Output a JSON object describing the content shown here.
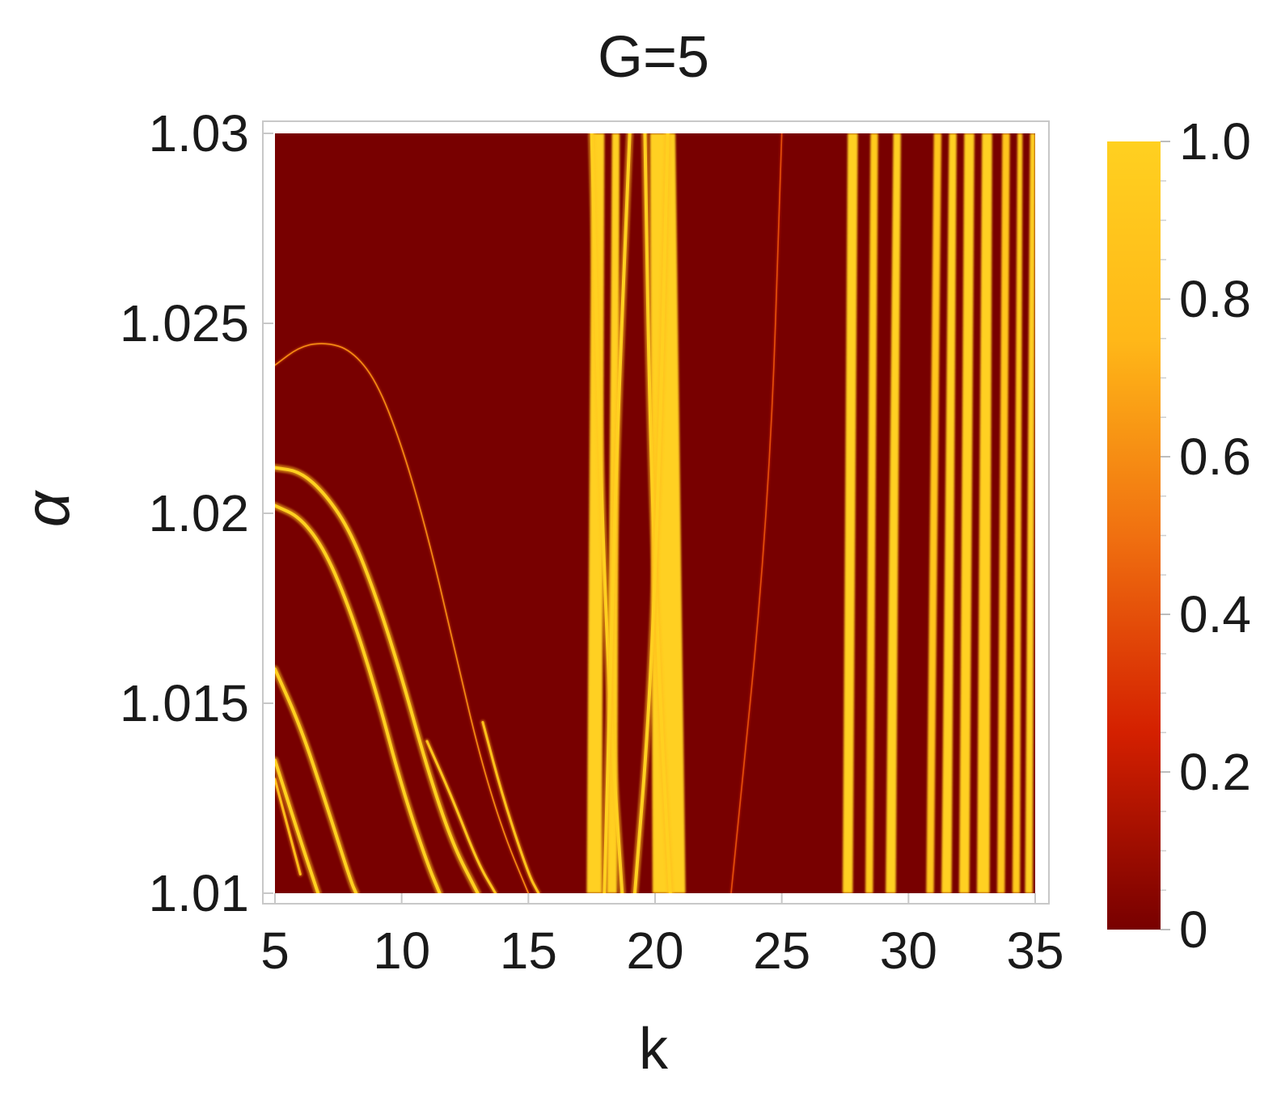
{
  "chart_data": {
    "type": "heatmap",
    "title": "G=5",
    "xlabel": "k",
    "ylabel": "α",
    "xlim": [
      5,
      35
    ],
    "ylim": [
      1.01,
      1.03
    ],
    "xticks": [
      5,
      10,
      15,
      20,
      25,
      30,
      35
    ],
    "xtick_labels": [
      "5",
      "10",
      "15",
      "20",
      "25",
      "30",
      "35"
    ],
    "yticks": [
      1.01,
      1.015,
      1.02,
      1.025,
      1.03
    ],
    "ytick_labels": [
      "1.01",
      "1.015",
      "1.02",
      "1.025",
      "1.03"
    ],
    "colorbar": {
      "min": 0,
      "max": 1,
      "ticks": [
        0,
        0.2,
        0.4,
        0.6,
        0.8,
        1.0
      ],
      "tick_labels": [
        "0",
        "0.2",
        "0.4",
        "0.6",
        "0.8",
        "1.0"
      ],
      "colors": [
        "#780000",
        "#d42000",
        "#f07010",
        "#ffb818",
        "#ffd020"
      ]
    },
    "curves": [
      {
        "points": [
          [
            5,
            1.0239
          ],
          [
            6,
            1.0244
          ],
          [
            7,
            1.0245
          ],
          [
            8,
            1.0243
          ],
          [
            9,
            1.0235
          ],
          [
            10,
            1.0218
          ],
          [
            11,
            1.0195
          ],
          [
            12,
            1.0167
          ],
          [
            13,
            1.0138
          ],
          [
            14,
            1.0116
          ],
          [
            15,
            1.01
          ]
        ],
        "intensity": 0.5
      },
      {
        "points": [
          [
            5,
            1.0212
          ],
          [
            6,
            1.0211
          ],
          [
            7,
            1.0205
          ],
          [
            8,
            1.0195
          ],
          [
            9,
            1.0178
          ],
          [
            10,
            1.0157
          ],
          [
            11,
            1.0133
          ],
          [
            12,
            1.0113
          ],
          [
            13,
            1.01
          ]
        ],
        "intensity": 1.0
      },
      {
        "points": [
          [
            5,
            1.0202
          ],
          [
            6,
            1.0199
          ],
          [
            7,
            1.019
          ],
          [
            8,
            1.0174
          ],
          [
            9,
            1.0153
          ],
          [
            10,
            1.0128
          ],
          [
            11,
            1.0108
          ],
          [
            11.5,
            1.01
          ]
        ],
        "intensity": 1.0
      },
      {
        "points": [
          [
            5,
            1.0159
          ],
          [
            6,
            1.0144
          ],
          [
            7,
            1.0124
          ],
          [
            8,
            1.0103
          ],
          [
            8.2,
            1.01
          ]
        ],
        "intensity": 1.0
      },
      {
        "points": [
          [
            5,
            1.0135
          ],
          [
            6,
            1.0114
          ],
          [
            6.7,
            1.01
          ]
        ],
        "intensity": 0.9
      },
      {
        "points": [
          [
            5,
            1.013
          ],
          [
            5.6,
            1.0115
          ],
          [
            6,
            1.0105
          ]
        ],
        "intensity": 0.7
      },
      {
        "points": [
          [
            11,
            1.014
          ],
          [
            12,
            1.0125
          ],
          [
            13,
            1.0108
          ],
          [
            13.7,
            1.01
          ]
        ],
        "intensity": 0.8
      },
      {
        "points": [
          [
            13.2,
            1.0145
          ],
          [
            14,
            1.0125
          ],
          [
            15,
            1.0105
          ],
          [
            15.4,
            1.01
          ]
        ],
        "intensity": 0.75
      },
      {
        "points": [
          [
            17.5,
            1.03
          ],
          [
            17.8,
            1.022
          ],
          [
            18.2,
            1.015
          ],
          [
            18.7,
            1.01
          ]
        ],
        "intensity": 1.0
      },
      {
        "points": [
          [
            19,
            1.03
          ],
          [
            18.5,
            1.022
          ],
          [
            18.2,
            1.015
          ],
          [
            18,
            1.01
          ]
        ],
        "intensity": 0.9
      },
      {
        "points": [
          [
            19.6,
            1.03
          ],
          [
            19.8,
            1.022
          ],
          [
            20.2,
            1.015
          ],
          [
            20.6,
            1.01
          ]
        ],
        "intensity": 0.9
      },
      {
        "points": [
          [
            20.5,
            1.03
          ],
          [
            20.2,
            1.022
          ],
          [
            19.8,
            1.015
          ],
          [
            19.2,
            1.01
          ]
        ],
        "intensity": 0.9
      },
      {
        "points": [
          [
            23,
            1.01
          ],
          [
            24.5,
            1.02
          ],
          [
            25,
            1.03
          ]
        ],
        "intensity": 0.3
      }
    ],
    "bands": [
      {
        "x_low": [
          17.3,
          17.9
        ],
        "x_high": [
          17.5,
          18.0
        ],
        "intensity": 1.0
      },
      {
        "x_low": [
          18.1,
          18.5
        ],
        "x_high": [
          18.3,
          18.6
        ],
        "intensity": 1.0
      },
      {
        "x_low": [
          19.9,
          21.2
        ],
        "x_high": [
          19.8,
          20.8
        ],
        "intensity": 1.0
      },
      {
        "x_low": [
          27.4,
          27.8
        ],
        "x_high": [
          27.6,
          28.0
        ],
        "intensity": 1.0
      },
      {
        "x_low": [
          28.3,
          28.6
        ],
        "x_high": [
          28.5,
          28.8
        ],
        "intensity": 0.95
      },
      {
        "x_low": [
          29.1,
          29.5
        ],
        "x_high": [
          29.4,
          29.7
        ],
        "intensity": 1.0
      },
      {
        "x_low": [
          30.7,
          31.0
        ],
        "x_high": [
          31.0,
          31.3
        ],
        "intensity": 0.9
      },
      {
        "x_low": [
          31.3,
          31.7
        ],
        "x_high": [
          31.6,
          31.9
        ],
        "intensity": 1.0
      },
      {
        "x_low": [
          32.0,
          32.4
        ],
        "x_high": [
          32.2,
          32.6
        ],
        "intensity": 1.0
      },
      {
        "x_low": [
          32.7,
          33.2
        ],
        "x_high": [
          32.9,
          33.3
        ],
        "intensity": 1.0
      },
      {
        "x_low": [
          33.5,
          33.8
        ],
        "x_high": [
          33.7,
          34.0
        ],
        "intensity": 0.9
      },
      {
        "x_low": [
          34.1,
          34.4
        ],
        "x_high": [
          34.3,
          34.5
        ],
        "intensity": 0.95
      },
      {
        "x_low": [
          34.6,
          34.9
        ],
        "x_high": [
          34.8,
          35.0
        ],
        "intensity": 1.0
      }
    ]
  }
}
